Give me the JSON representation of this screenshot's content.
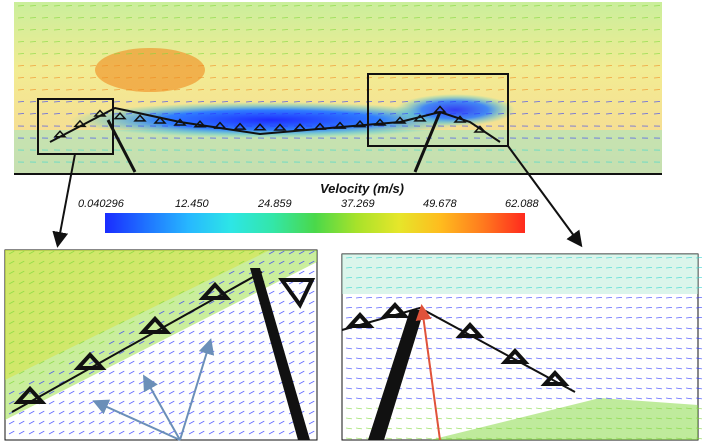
{
  "legend": {
    "title": "Velocity (m/s)",
    "ticks": [
      "0.040296",
      "12.450",
      "24.859",
      "37.269",
      "49.678",
      "62.088"
    ]
  },
  "colors": {
    "flow_low": "#2a35ff",
    "flow_mid": "#30d6d0",
    "flow_green": "#7fd83a",
    "flow_high": "#f08a1e",
    "structure": "#111111",
    "annotation_blue": "#6b8fb8",
    "annotation_red": "#e0523a"
  }
}
